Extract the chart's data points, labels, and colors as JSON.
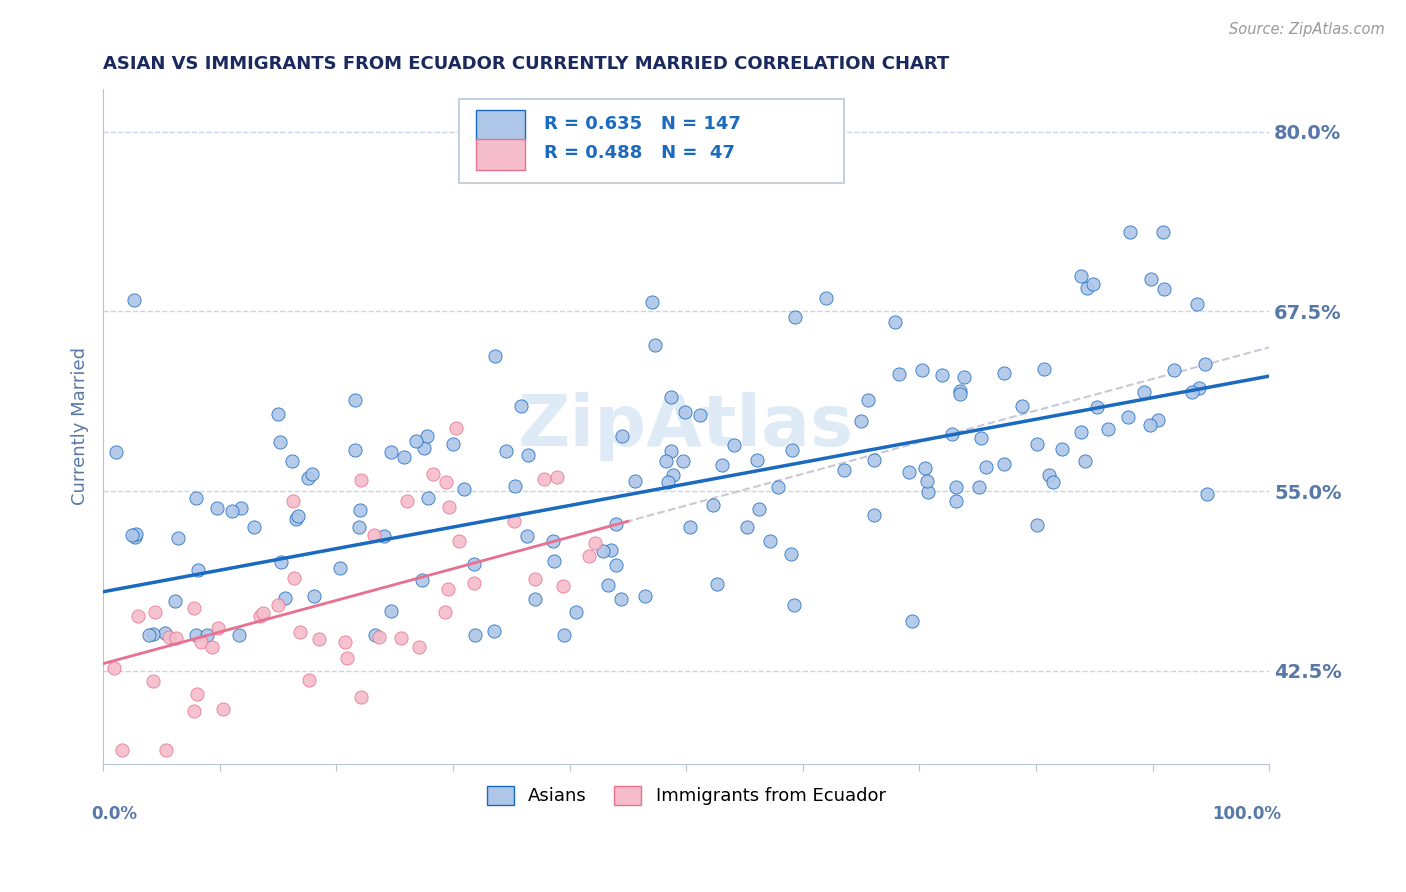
{
  "title": "ASIAN VS IMMIGRANTS FROM ECUADOR CURRENTLY MARRIED CORRELATION CHART",
  "source_text": "Source: ZipAtlas.com",
  "ylabel": "Currently Married",
  "legend_label_blue": "Asians",
  "legend_label_pink": "Immigrants from Ecuador",
  "r_blue": 0.635,
  "n_blue": 147,
  "r_pink": 0.488,
  "n_pink": 47,
  "xlim": [
    0.0,
    100.0
  ],
  "ylim": [
    36.0,
    83.0
  ],
  "yticks": [
    42.5,
    55.0,
    67.5,
    80.0
  ],
  "color_blue_scatter": "#aec6e8",
  "color_blue_line": "#1a6abf",
  "color_pink_scatter": "#f5bccb",
  "color_pink_line": "#e87090",
  "color_gray_dashed": "#c8c8d8",
  "watermark_text": "ZipAtlas",
  "watermark_color": "#c8dff0",
  "title_color": "#1a2a5e",
  "axis_label_color": "#5878a8",
  "tick_label_color": "#5878a8",
  "background_color": "#ffffff",
  "grid_color": "#c8d4e8",
  "legend_text_color": "#1a6abf",
  "source_color": "#999999"
}
